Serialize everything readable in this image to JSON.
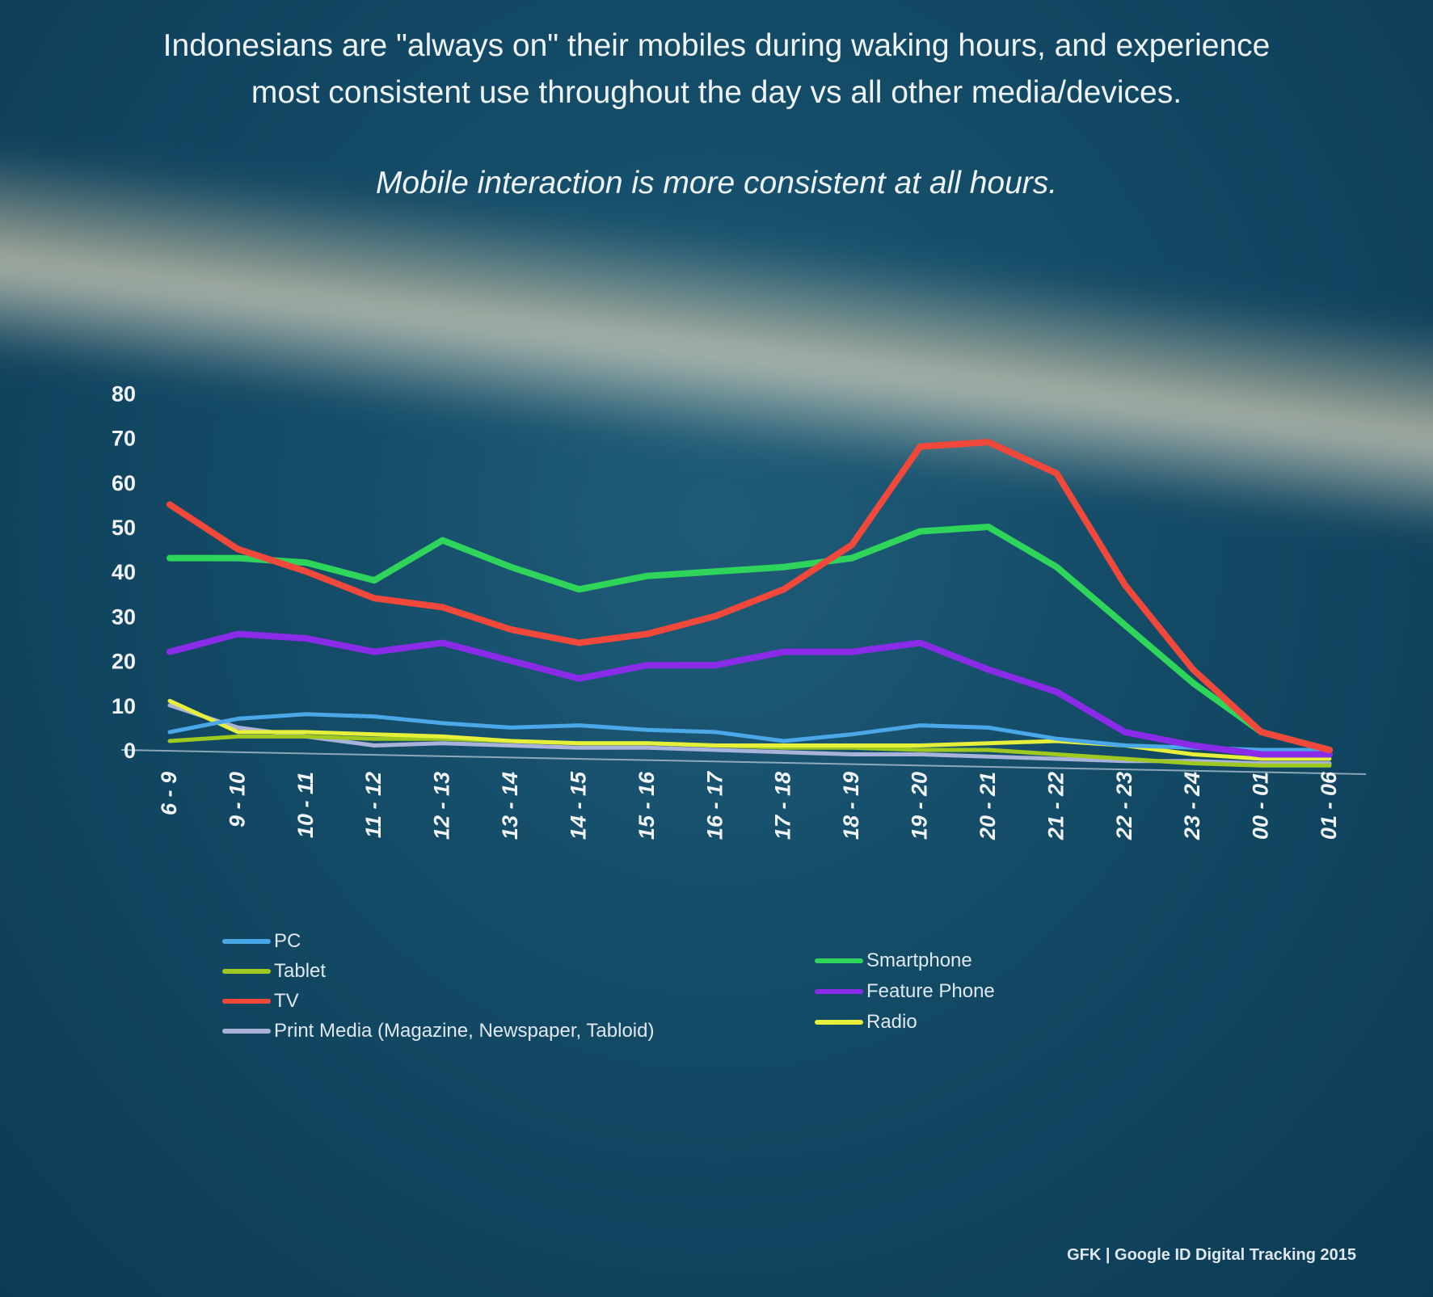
{
  "slide": {
    "title_line1": "Indonesians are \"always on\" their mobiles during waking hours, and experience",
    "title_line2": "most consistent use throughout the day vs all other media/devices.",
    "subtitle": "Mobile interaction is more consistent at all hours.",
    "source": "GFK | Google ID Digital Tracking 2015"
  },
  "chart_data": {
    "type": "line",
    "title": "",
    "xlabel": "",
    "ylabel": "",
    "ylim": [
      0,
      80
    ],
    "yticks": [
      0,
      10,
      20,
      30,
      40,
      50,
      60,
      70,
      80
    ],
    "grid": false,
    "legend_placement": "bottom",
    "categories": [
      "6 - 9",
      "9 - 10",
      "10 - 11",
      "11 - 12",
      "12 - 13",
      "13 - 14",
      "14 - 15",
      "15 - 16",
      "16 - 17",
      "17 - 18",
      "18 - 19",
      "19 - 20",
      "20 - 21",
      "21 - 22",
      "22 - 23",
      "23 - 24",
      "00 - 01",
      "01 - 06"
    ],
    "series": [
      {
        "name": "PC",
        "color": "#4aa8e8",
        "values": [
          4,
          7,
          8,
          7.5,
          6,
          5,
          5.5,
          4.5,
          4,
          2,
          3.5,
          5.5,
          5,
          2.5,
          1,
          0.5,
          0,
          0
        ]
      },
      {
        "name": "Tablet",
        "color": "#9fc820",
        "values": [
          2,
          3,
          3,
          2.5,
          2.5,
          2,
          1.5,
          1.5,
          1,
          0.5,
          0.5,
          0,
          0,
          -1,
          -2,
          -3,
          -3.5,
          -3.5
        ]
      },
      {
        "name": "TV",
        "color": "#f0483a",
        "values": [
          55,
          45,
          40,
          34,
          32,
          27,
          24,
          26,
          30,
          36,
          46,
          68,
          69,
          62,
          37,
          18,
          4,
          0
        ]
      },
      {
        "name": "Print Media (Magazine, Newspaper, Tabloid)",
        "color": "#a9b2d8",
        "values": [
          10,
          5,
          3,
          1,
          1.5,
          1,
          0.5,
          0.5,
          0,
          -0.5,
          -1,
          -1,
          -1.5,
          -2,
          -2.5,
          -2.5,
          -3,
          -3
        ]
      },
      {
        "name": "Smartphone",
        "color": "#2fd45a",
        "values": [
          43,
          43,
          42,
          38,
          47,
          41,
          36,
          39,
          40,
          41,
          43,
          49,
          50,
          41,
          28,
          15,
          4,
          0
        ]
      },
      {
        "name": "Feature Phone",
        "color": "#8a2be8",
        "values": [
          22,
          26,
          25,
          22,
          24,
          20,
          16,
          19,
          19,
          22,
          22,
          24,
          18,
          13,
          4,
          1,
          -1,
          -1
        ]
      },
      {
        "name": "Radio",
        "color": "#e6ef3a",
        "values": [
          11,
          4,
          4,
          3.5,
          3,
          2,
          1.5,
          1.5,
          1,
          1,
          1,
          1,
          1.5,
          2,
          1,
          -1,
          -2,
          -2
        ]
      }
    ]
  }
}
